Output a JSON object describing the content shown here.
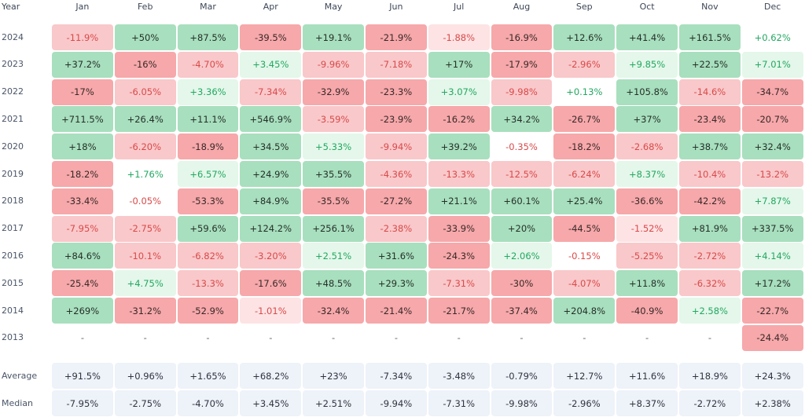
{
  "chart_data": {
    "type": "heatmap",
    "columns_label": "Year",
    "months": [
      "Jan",
      "Feb",
      "Mar",
      "Apr",
      "May",
      "Jun",
      "Jul",
      "Aug",
      "Sep",
      "Oct",
      "Nov",
      "Dec"
    ],
    "rows": [
      {
        "year": "2024",
        "values": [
          "-11.9%",
          "+50%",
          "+87.5%",
          "-39.5%",
          "+19.1%",
          "-21.9%",
          "-1.88%",
          "-16.9%",
          "+12.6%",
          "+41.4%",
          "+161.5%",
          "+0.62%"
        ]
      },
      {
        "year": "2023",
        "values": [
          "+37.2%",
          "-16%",
          "-4.70%",
          "+3.45%",
          "-9.96%",
          "-7.18%",
          "+17%",
          "-17.9%",
          "-2.96%",
          "+9.85%",
          "+22.5%",
          "+7.01%"
        ]
      },
      {
        "year": "2022",
        "values": [
          "-17%",
          "-6.05%",
          "+3.36%",
          "-7.34%",
          "-32.9%",
          "-23.3%",
          "+3.07%",
          "-9.98%",
          "+0.13%",
          "+105.8%",
          "-14.6%",
          "-34.7%"
        ]
      },
      {
        "year": "2021",
        "values": [
          "+711.5%",
          "+26.4%",
          "+11.1%",
          "+546.9%",
          "-3.59%",
          "-23.9%",
          "-16.2%",
          "+34.2%",
          "-26.7%",
          "+37%",
          "-23.4%",
          "-20.7%"
        ]
      },
      {
        "year": "2020",
        "values": [
          "+18%",
          "-6.20%",
          "-18.9%",
          "+34.5%",
          "+5.33%",
          "-9.94%",
          "+39.2%",
          "-0.35%",
          "-18.2%",
          "-2.68%",
          "+38.7%",
          "+32.4%"
        ]
      },
      {
        "year": "2019",
        "values": [
          "-18.2%",
          "+1.76%",
          "+6.57%",
          "+24.9%",
          "+35.5%",
          "-4.36%",
          "-13.3%",
          "-12.5%",
          "-6.24%",
          "+8.37%",
          "-10.4%",
          "-13.2%"
        ]
      },
      {
        "year": "2018",
        "values": [
          "-33.4%",
          "-0.05%",
          "-53.3%",
          "+84.9%",
          "-35.5%",
          "-27.2%",
          "+21.1%",
          "+60.1%",
          "+25.4%",
          "-36.6%",
          "-42.2%",
          "+7.87%"
        ]
      },
      {
        "year": "2017",
        "values": [
          "-7.95%",
          "-2.75%",
          "+59.6%",
          "+124.2%",
          "+256.1%",
          "-2.38%",
          "-33.9%",
          "+20%",
          "-44.5%",
          "-1.52%",
          "+81.9%",
          "+337.5%"
        ]
      },
      {
        "year": "2016",
        "values": [
          "+84.6%",
          "-10.1%",
          "-6.82%",
          "-3.20%",
          "+2.51%",
          "+31.6%",
          "-24.3%",
          "+2.06%",
          "-0.15%",
          "-5.25%",
          "-2.72%",
          "+4.14%"
        ]
      },
      {
        "year": "2015",
        "values": [
          "-25.4%",
          "+4.75%",
          "-13.3%",
          "-17.6%",
          "+48.5%",
          "+29.3%",
          "-7.31%",
          "-30%",
          "-4.07%",
          "+11.8%",
          "-6.32%",
          "+17.2%"
        ]
      },
      {
        "year": "2014",
        "values": [
          "+269%",
          "-31.2%",
          "-52.9%",
          "-1.01%",
          "-32.4%",
          "-21.4%",
          "-21.7%",
          "-37.4%",
          "+204.8%",
          "-40.9%",
          "+2.58%",
          "-22.7%"
        ]
      },
      {
        "year": "2013",
        "values": [
          "-",
          "-",
          "-",
          "-",
          "-",
          "-",
          "-",
          "-",
          "-",
          "-",
          "-",
          "-24.4%"
        ]
      }
    ],
    "summary": [
      {
        "label": "Average",
        "values": [
          "+91.5%",
          "+0.96%",
          "+1.65%",
          "+68.2%",
          "+23%",
          "-7.34%",
          "-3.48%",
          "-0.79%",
          "+12.7%",
          "+11.6%",
          "+18.9%",
          "+24.3%"
        ]
      },
      {
        "label": "Median",
        "values": [
          "-7.95%",
          "-2.75%",
          "-4.70%",
          "+3.45%",
          "+2.51%",
          "-9.94%",
          "-7.31%",
          "-9.98%",
          "-2.96%",
          "+8.37%",
          "-2.72%",
          "+2.38%"
        ]
      }
    ],
    "colors": {
      "strong_pos": "#a8dfbe",
      "pos": "#c7ecd3",
      "weak_pos": "#e4f7ea",
      "strong_neg": "#f6a8aa",
      "neg": "#f9c8ca",
      "weak_neg": "#fde3e4",
      "pos_text_dark": "#24302a",
      "neg_text_dark": "#3a2828",
      "pos_text_light": "#22a861",
      "neg_text_light": "#d94a4a",
      "neutral_text": "#666666"
    }
  }
}
